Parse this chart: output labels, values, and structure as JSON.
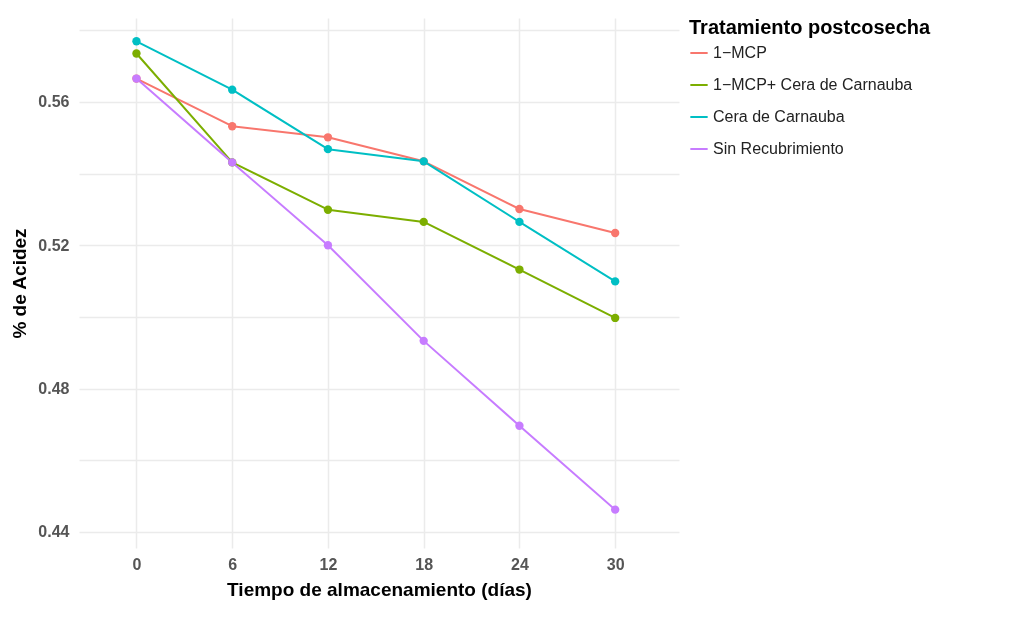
{
  "chart_data": {
    "type": "line",
    "xlabel": "Tiempo de almacenamiento (días)",
    "ylabel": "% de Acidez",
    "legend_title": "Tratamiento postcosecha",
    "x": [
      0,
      6,
      12,
      18,
      24,
      30
    ],
    "series": [
      {
        "name": "1−MCP",
        "color": "#f8766d",
        "values": [
          0.5665,
          0.5532,
          0.5501,
          0.5434,
          0.5301,
          0.5234
        ]
      },
      {
        "name": "1−MCP+ Cera de Carnauba",
        "color": "#7cae00",
        "values": [
          0.5735,
          0.5431,
          0.5299,
          0.5265,
          0.5132,
          0.4997
        ]
      },
      {
        "name": "Cera de Carnauba",
        "color": "#00bfc4",
        "values": [
          0.5769,
          0.5634,
          0.5468,
          0.5434,
          0.5265,
          0.5099
        ]
      },
      {
        "name": "Sin Recubrimiento",
        "color": "#c77cff",
        "values": [
          0.5665,
          0.5431,
          0.52,
          0.4933,
          0.4696,
          0.4462
        ]
      }
    ],
    "xlim": [
      -3.6,
      34
    ],
    "xticks": [
      0,
      6,
      12,
      18,
      24,
      30
    ],
    "ylim": [
      0.4355,
      0.5834
    ],
    "yticks": [
      0.44,
      {
        "value": 0.46,
        "label": null
      },
      0.48,
      {
        "value": 0.5,
        "label": null
      },
      0.52,
      {
        "value": 0.54,
        "label": null
      },
      0.56,
      {
        "value": 0.58,
        "label": null
      }
    ],
    "grid": true,
    "legend": "right",
    "marker": "circle",
    "line_style": "solid"
  }
}
